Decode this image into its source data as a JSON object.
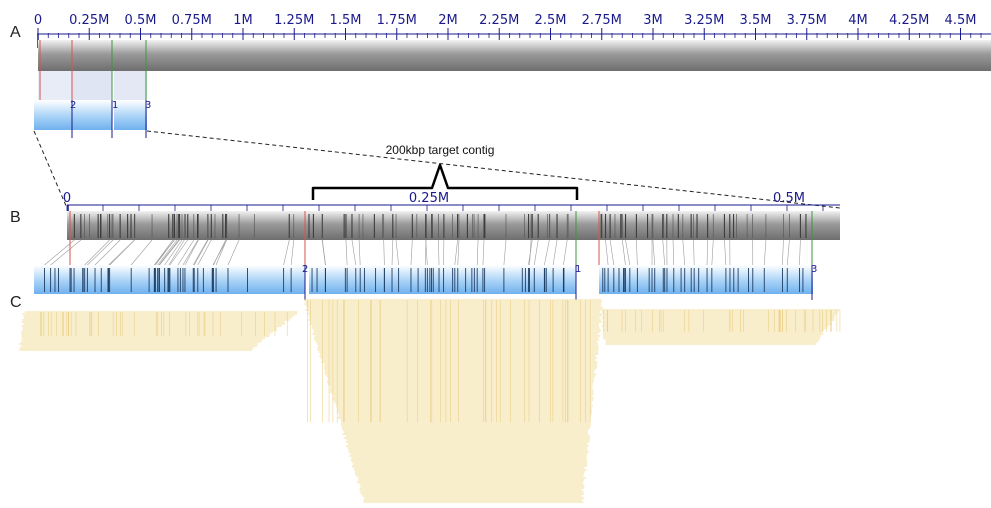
{
  "panels": {
    "a": "A",
    "b": "B",
    "c": "C"
  },
  "ruler_a": {
    "ticks": [
      "0",
      "0.25M",
      "0.5M",
      "0.75M",
      "1M",
      "1.25M",
      "1.5M",
      "1.75M",
      "2M",
      "2.25M",
      "2.5M",
      "2.75M",
      "3M",
      "3.25M",
      "3.5M",
      "3.75M",
      "4M",
      "4.25M",
      "4.5M"
    ],
    "start_marker": "1"
  },
  "contigs_a": {
    "labels": [
      "2",
      "1",
      "3"
    ]
  },
  "ruler_b": {
    "ticks": [
      "0",
      "0.25M",
      "0.5M"
    ],
    "start_marker": "1"
  },
  "contigs_b": {
    "labels": [
      "2",
      "1",
      "3"
    ]
  },
  "annotation": {
    "text": "200kbp target contig"
  },
  "colors": {
    "reference": "#8a8a8a",
    "contig": "#9ccaf5",
    "reads": "#f3dc9a",
    "axis_text": "#1a1a8c",
    "match_red": "#d9534f",
    "match_green": "#3a9a3a"
  }
}
